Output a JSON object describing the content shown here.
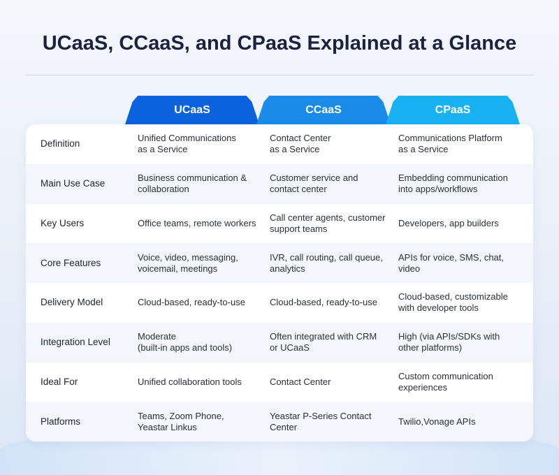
{
  "title": "UCaaS, CCaaS, and CPaaS Explained at a Glance",
  "columns": [
    "UCaaS",
    "CCaaS",
    "CPaaS"
  ],
  "colors": {
    "ucaas": "#0a62dc",
    "ccaas": "#1a8be8",
    "cpaas": "#18b1f2",
    "title": "#1a2240"
  },
  "rows": [
    {
      "label": "Definition",
      "ucaas": "Unified Communications\nas a Service",
      "ccaas": "Contact Center\nas a Service",
      "cpaas": "Communications Platform\nas a Service"
    },
    {
      "label": "Main Use Case",
      "ucaas": "Business communication &\ncollaboration",
      "ccaas": "Customer service and\ncontact center",
      "cpaas": "Embedding communication\ninto apps/workflows"
    },
    {
      "label": "Key Users",
      "ucaas": "Office teams, remote workers",
      "ccaas": "Call center agents, customer\nsupport teams",
      "cpaas": "Developers, app builders"
    },
    {
      "label": "Core Features",
      "ucaas": "Voice, video, messaging,\nvoicemail, meetings",
      "ccaas": "IVR, call routing, call queue,\nanalytics",
      "cpaas": "APIs for voice, SMS, chat,\nvideo"
    },
    {
      "label": "Delivery Model",
      "ucaas": "Cloud-based, ready-to-use",
      "ccaas": "Cloud-based, ready-to-use",
      "cpaas": "Cloud-based, customizable\nwith developer tools"
    },
    {
      "label": "Integration Level",
      "ucaas": "Moderate\n(built-in apps and tools)",
      "ccaas": "Often integrated with CRM\nor UCaaS",
      "cpaas": "High (via APIs/SDKs with\nother platforms)"
    },
    {
      "label": "Ideal For",
      "ucaas": "Unified collaboration tools",
      "ccaas": "Contact Center",
      "cpaas": "Custom communication\nexperiences"
    },
    {
      "label": "Platforms",
      "ucaas": "Teams, Zoom Phone,\nYeastar Linkus",
      "ccaas": "Yeastar P-Series Contact\nCenter",
      "cpaas": "Twilio,Vonage APIs"
    }
  ]
}
